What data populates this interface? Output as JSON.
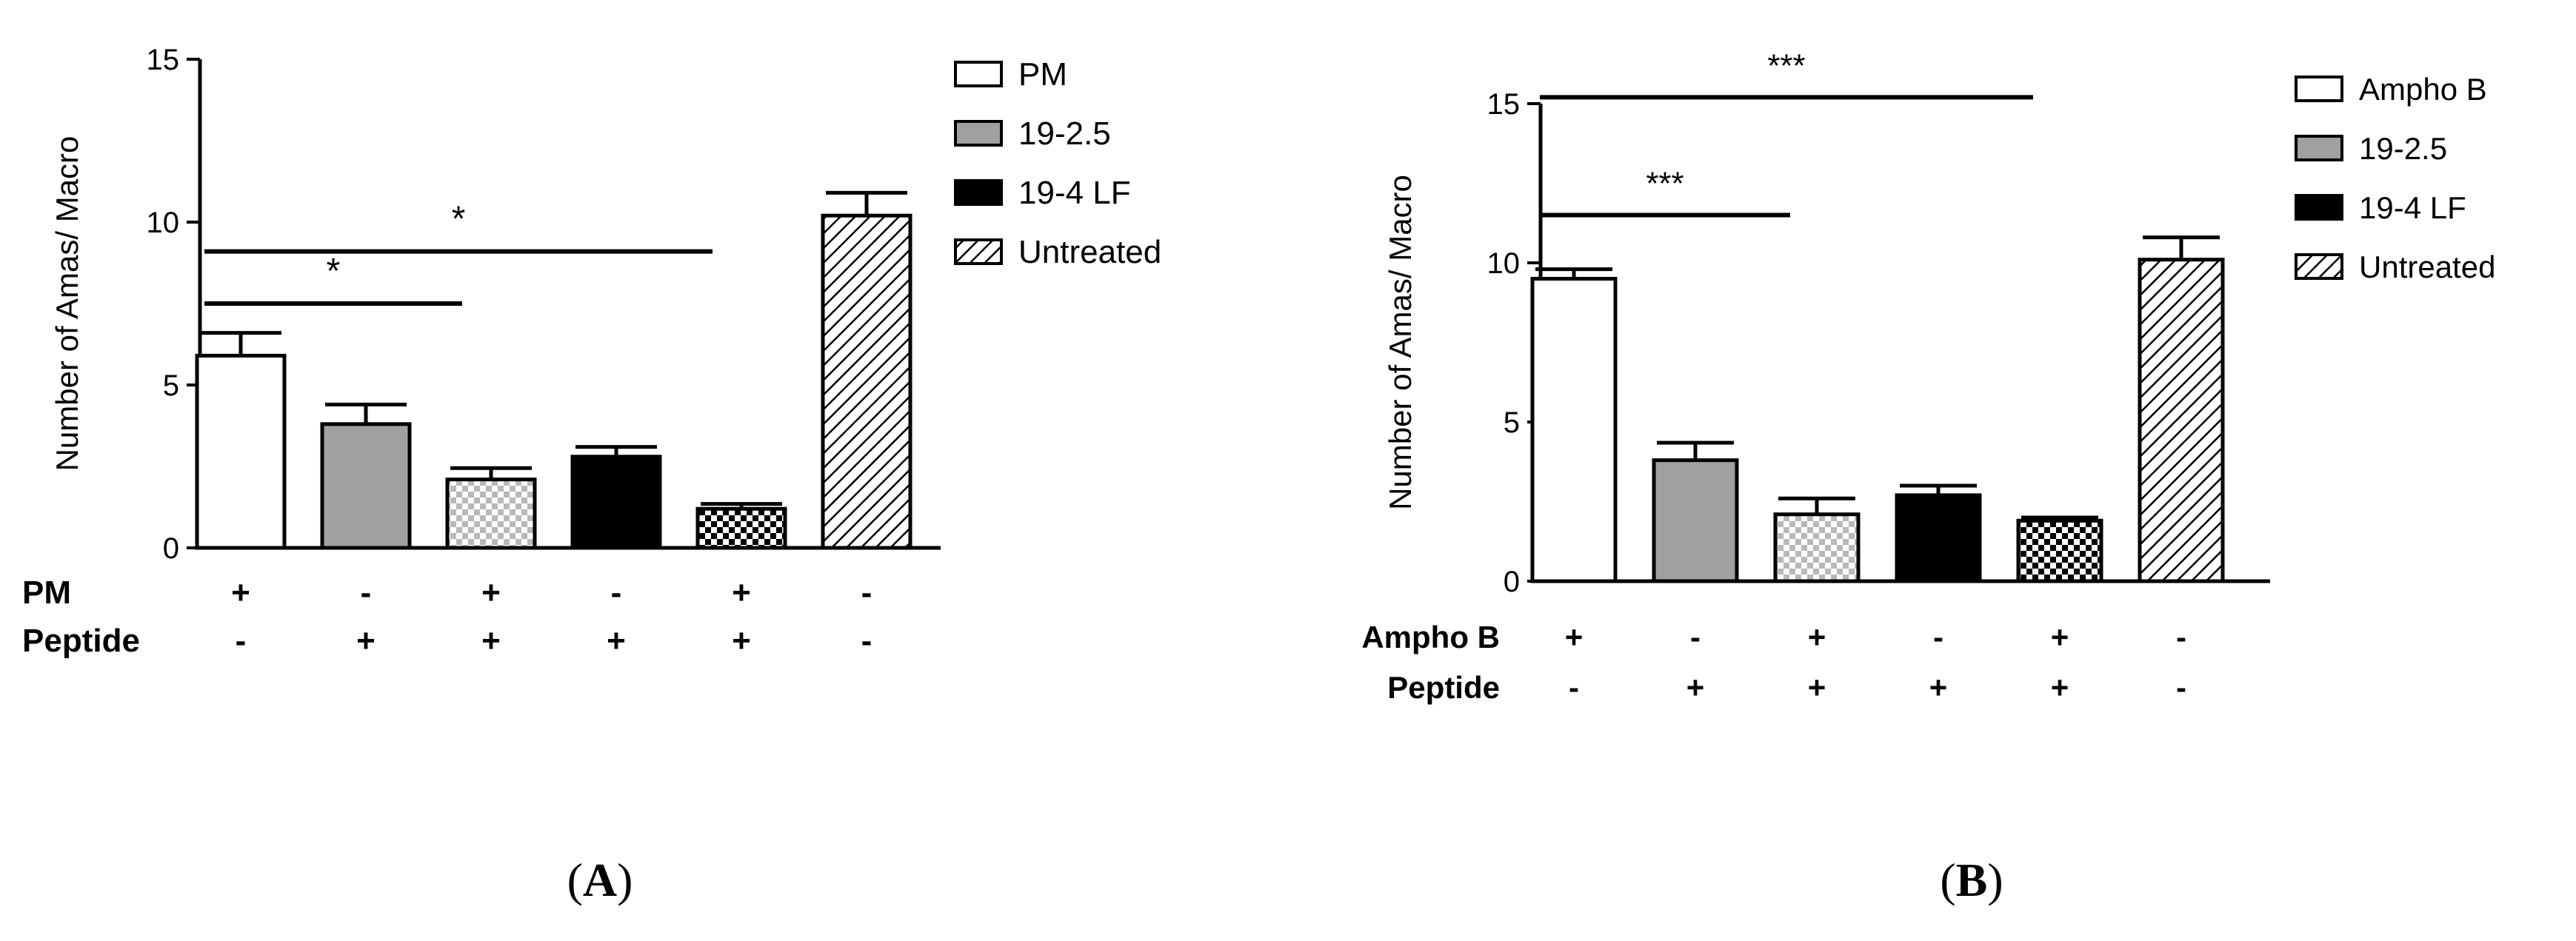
{
  "colors": {
    "pm": "#ffffff",
    "peptide_19_2_5": "#a0a0a0",
    "peptide_19_4_LF": "#000000",
    "untreated": "hatched",
    "combo_19_2_5": "checker-light",
    "combo_19_4_LF": "checker-dark"
  },
  "chart_data": [
    {
      "type": "bar",
      "panel_label": "A",
      "ylabel": "Number of Amas/ Macro",
      "ylim": [
        0,
        15
      ],
      "yticks": [
        "0",
        "5",
        "10",
        "15"
      ],
      "values": [
        5.9,
        3.8,
        2.1,
        2.8,
        1.2,
        10.2
      ],
      "errors": [
        0.7,
        0.6,
        0.35,
        0.3,
        0.15,
        0.7
      ],
      "patterns": [
        "white",
        "gray",
        "light-checker",
        "black",
        "dark-checker",
        "hatch"
      ],
      "legend": [
        "PM",
        "19-2.5",
        "19-4 LF",
        "Untreated"
      ],
      "legend_patterns": [
        "white",
        "gray",
        "black",
        "hatch"
      ],
      "row_labels": [
        "PM",
        "Peptide"
      ],
      "row1": [
        "+",
        "-",
        "+",
        "-",
        "+",
        "-"
      ],
      "row2": [
        "-",
        "+",
        "+",
        "+",
        "+",
        "-"
      ],
      "significance": [
        {
          "from": 0,
          "to": 2,
          "label": "*",
          "level": 7.5
        },
        {
          "from": 0,
          "to": 4,
          "label": "*",
          "level": 9.1
        }
      ]
    },
    {
      "type": "bar",
      "panel_label": "B",
      "ylabel": "Number of Amas/ Macro",
      "ylim": [
        0,
        15
      ],
      "yticks": [
        "0",
        "5",
        "10",
        "15"
      ],
      "values": [
        9.5,
        3.8,
        2.1,
        2.7,
        1.9,
        10.1
      ],
      "errors": [
        0.3,
        0.55,
        0.5,
        0.3,
        0.1,
        0.7
      ],
      "patterns": [
        "white",
        "gray",
        "light-checker",
        "black",
        "dark-checker",
        "hatch"
      ],
      "legend": [
        "Ampho B",
        "19-2.5",
        "19-4 LF",
        "Untreated"
      ],
      "legend_patterns": [
        "white",
        "gray",
        "black",
        "hatch"
      ],
      "row_labels": [
        "Ampho B",
        "Peptide"
      ],
      "row1": [
        "+",
        "-",
        "+",
        "-",
        "+",
        "-"
      ],
      "row2": [
        "-",
        "+",
        "+",
        "+",
        "+",
        "-"
      ],
      "significance": [
        {
          "from": 0,
          "to": 2,
          "label": "***",
          "level": 11.5
        },
        {
          "from": 0,
          "to": 4,
          "label": "***",
          "level": 15.2
        }
      ]
    }
  ]
}
